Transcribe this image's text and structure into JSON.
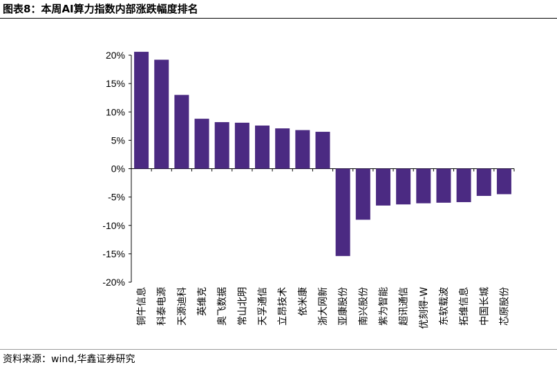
{
  "title": "图表8：本周AI算力指数内部涨跌幅度排名",
  "source": "资料来源：wind,华鑫证券研究",
  "colors": {
    "bar": "#4b2a82",
    "axis": "#000000"
  },
  "chart_data": {
    "type": "bar",
    "title": "",
    "xlabel": "",
    "ylabel": "",
    "ylim": [
      -20,
      20
    ],
    "yticks": [
      20,
      15,
      10,
      5,
      0,
      -5,
      -10,
      -15,
      -20
    ],
    "ytick_labels": [
      "20%",
      "15%",
      "10%",
      "5%",
      "0%",
      "-5%",
      "-10%",
      "-15%",
      "-20%"
    ],
    "grid": false,
    "categories": [
      "铜牛信息",
      "科泰电源",
      "天源迪科",
      "英维克",
      "奥飞数据",
      "常山北明",
      "天孚通信",
      "立昂技术",
      "依米康",
      "浙大网新",
      "亚康股份",
      "南兴股份",
      "紫为智能",
      "超讯通信",
      "优刻得-W",
      "东软载波",
      "拓维信息",
      "中国长城",
      "芯原股份"
    ],
    "values": [
      20.6,
      19.2,
      13.0,
      8.8,
      8.2,
      8.1,
      7.6,
      7.1,
      6.8,
      6.5,
      -15.4,
      -9.0,
      -6.5,
      -6.3,
      -6.1,
      -6.0,
      -5.9,
      -4.8,
      -4.5
    ],
    "unit": "%"
  }
}
